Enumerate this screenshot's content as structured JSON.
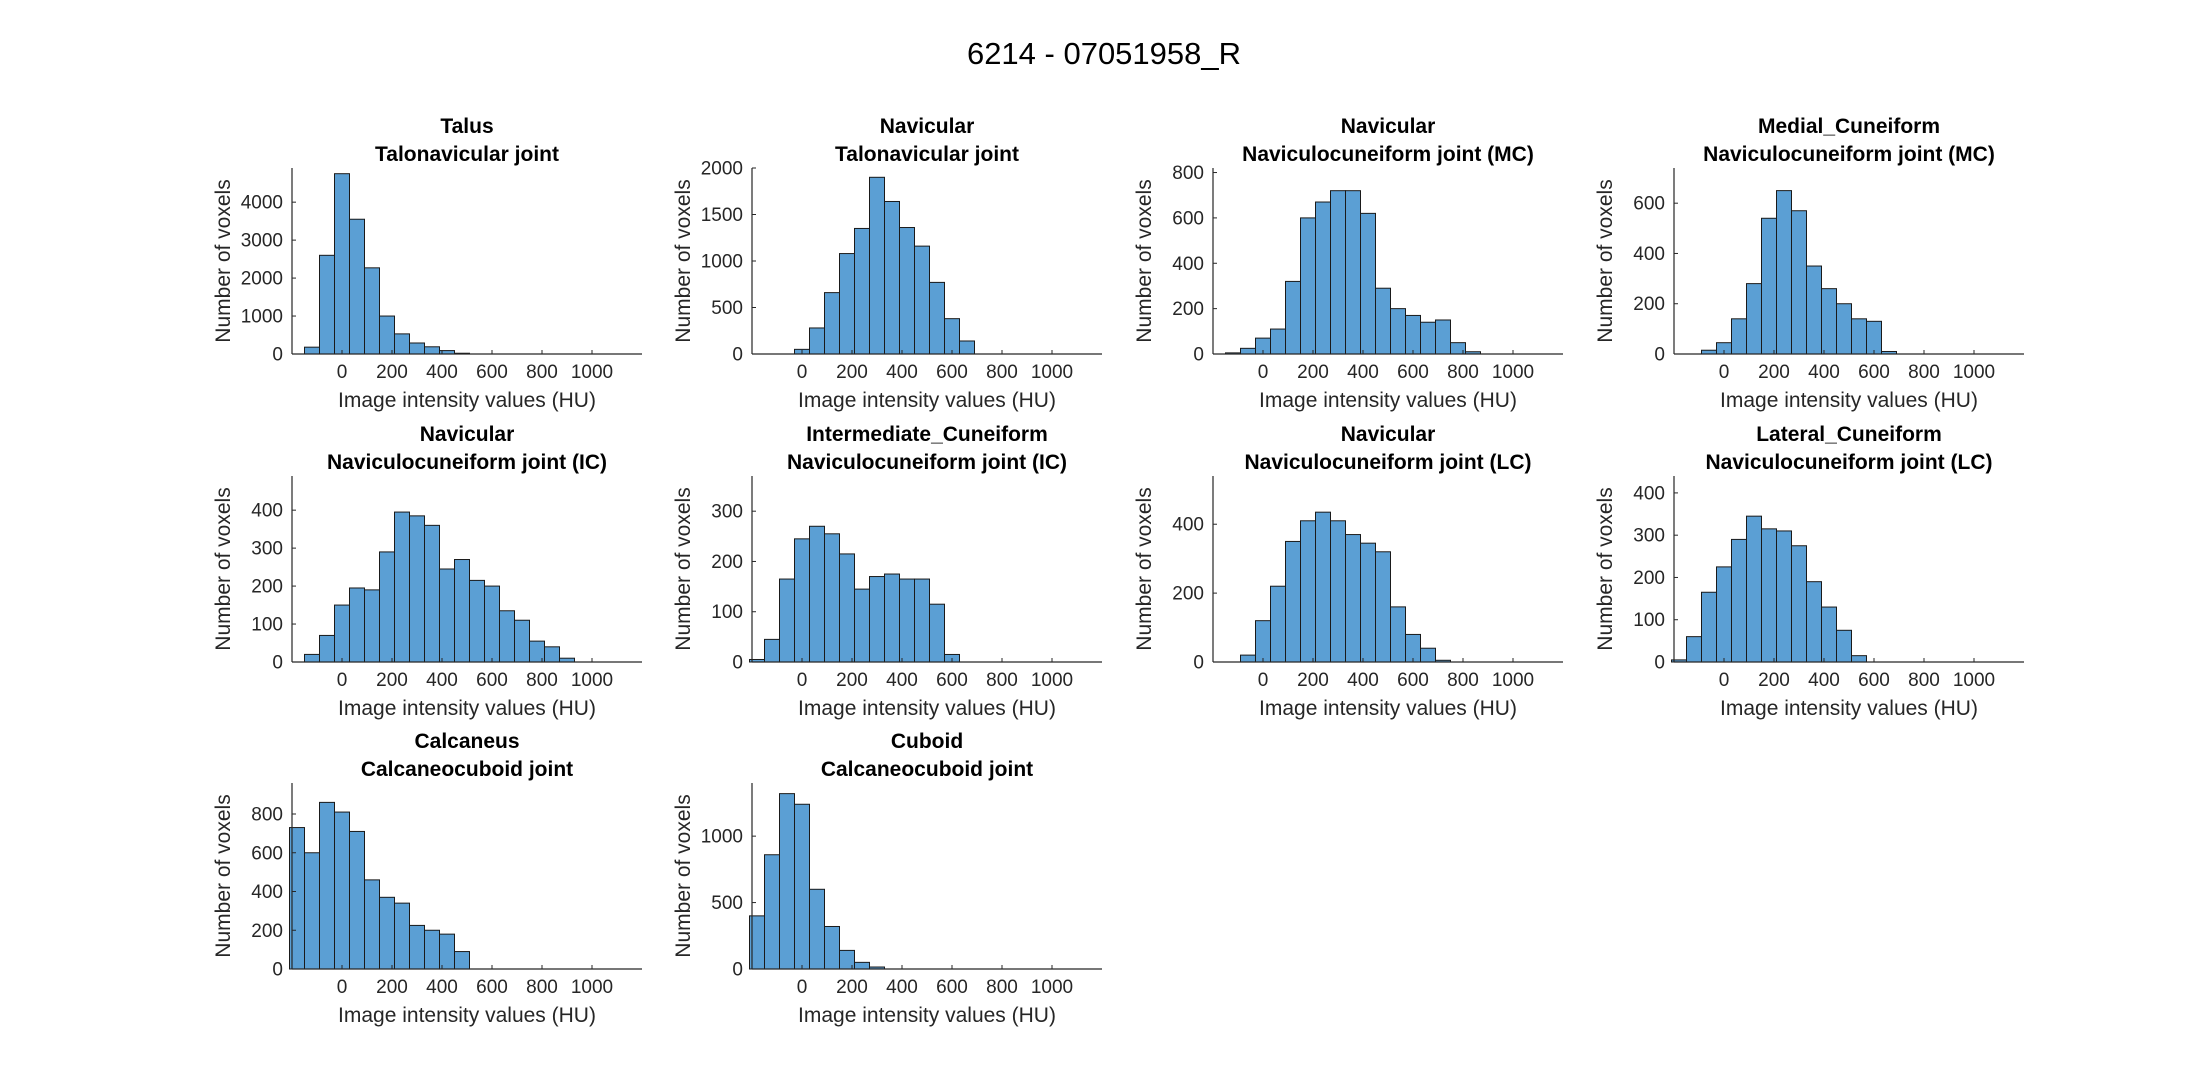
{
  "figure": {
    "suptitle": "6214 - 07051958_R"
  },
  "style": {
    "bar_fill": "#5b9fd4",
    "bar_edge": "#1a1a1a",
    "axis_color": "#262626",
    "text_color": "#000000",
    "background": "#ffffff"
  },
  "chart_data": [
    {
      "type": "bar",
      "kind": "histogram",
      "title": [
        "Talus",
        "Talonavicular joint"
      ],
      "xlabel": "Image intensity values (HU)",
      "ylabel": "Number of voxels",
      "xlim": [
        -200,
        1200
      ],
      "ylim": [
        0,
        4900
      ],
      "xticks": [
        0,
        200,
        400,
        600,
        800,
        1000
      ],
      "yticks": [
        0,
        1000,
        2000,
        3000,
        4000
      ],
      "bin_width": 60,
      "first_bin_start": -150,
      "counts": [
        180,
        2600,
        4750,
        3550,
        2270,
        1000,
        530,
        290,
        190,
        90,
        20
      ]
    },
    {
      "type": "bar",
      "kind": "histogram",
      "title": [
        "Navicular",
        "Talonavicular joint"
      ],
      "xlabel": "Image intensity values (HU)",
      "ylabel": "Number of voxels",
      "xlim": [
        -200,
        1200
      ],
      "ylim": [
        0,
        2000
      ],
      "xticks": [
        0,
        200,
        400,
        600,
        800,
        1000
      ],
      "yticks": [
        0,
        500,
        1000,
        1500,
        2000
      ],
      "bin_width": 60,
      "first_bin_start": -30,
      "counts": [
        50,
        280,
        660,
        1080,
        1350,
        1900,
        1640,
        1360,
        1160,
        770,
        380,
        140
      ]
    },
    {
      "type": "bar",
      "kind": "histogram",
      "title": [
        "Navicular",
        "Naviculocuneiform joint (MC)"
      ],
      "xlabel": "Image intensity values (HU)",
      "ylabel": "Number of voxels",
      "xlim": [
        -200,
        1200
      ],
      "ylim": [
        0,
        820
      ],
      "xticks": [
        0,
        200,
        400,
        600,
        800,
        1000
      ],
      "yticks": [
        0,
        200,
        400,
        600,
        800
      ],
      "bin_width": 60,
      "first_bin_start": -150,
      "counts": [
        5,
        25,
        70,
        110,
        320,
        600,
        670,
        720,
        720,
        620,
        290,
        200,
        170,
        140,
        150,
        50,
        10
      ]
    },
    {
      "type": "bar",
      "kind": "histogram",
      "title": [
        "Medial_Cuneiform",
        "Naviculocuneiform joint (MC)"
      ],
      "xlabel": "Image intensity values (HU)",
      "ylabel": "Number of voxels",
      "xlim": [
        -200,
        1200
      ],
      "ylim": [
        0,
        740
      ],
      "xticks": [
        0,
        200,
        400,
        600,
        800,
        1000
      ],
      "yticks": [
        0,
        200,
        400,
        600
      ],
      "bin_width": 60,
      "first_bin_start": -90,
      "counts": [
        15,
        45,
        140,
        280,
        540,
        650,
        570,
        350,
        260,
        200,
        140,
        130,
        10
      ]
    },
    {
      "type": "bar",
      "kind": "histogram",
      "title": [
        "Navicular",
        "Naviculocuneiform joint (IC)"
      ],
      "xlabel": "Image intensity values (HU)",
      "ylabel": "Number of voxels",
      "xlim": [
        -200,
        1200
      ],
      "ylim": [
        0,
        490
      ],
      "xticks": [
        0,
        200,
        400,
        600,
        800,
        1000
      ],
      "yticks": [
        0,
        100,
        200,
        300,
        400
      ],
      "bin_width": 60,
      "first_bin_start": -150,
      "counts": [
        20,
        70,
        150,
        195,
        190,
        290,
        395,
        385,
        360,
        245,
        270,
        215,
        200,
        135,
        110,
        55,
        40,
        10
      ]
    },
    {
      "type": "bar",
      "kind": "histogram",
      "title": [
        "Intermediate_Cuneiform",
        "Naviculocuneiform joint (IC)"
      ],
      "xlabel": "Image intensity values (HU)",
      "ylabel": "Number of voxels",
      "xlim": [
        -200,
        1200
      ],
      "ylim": [
        0,
        370
      ],
      "xticks": [
        0,
        200,
        400,
        600,
        800,
        1000
      ],
      "yticks": [
        0,
        100,
        200,
        300
      ],
      "bin_width": 60,
      "first_bin_start": -210,
      "counts": [
        5,
        45,
        165,
        245,
        270,
        255,
        215,
        145,
        170,
        175,
        165,
        165,
        115,
        15
      ]
    },
    {
      "type": "bar",
      "kind": "histogram",
      "title": [
        "Navicular",
        "Naviculocuneiform joint (LC)"
      ],
      "xlabel": "Image intensity values (HU)",
      "ylabel": "Number of voxels",
      "xlim": [
        -200,
        1200
      ],
      "ylim": [
        0,
        540
      ],
      "xticks": [
        0,
        200,
        400,
        600,
        800,
        1000
      ],
      "yticks": [
        0,
        200,
        400
      ],
      "bin_width": 60,
      "first_bin_start": -90,
      "counts": [
        20,
        120,
        220,
        350,
        410,
        435,
        410,
        370,
        345,
        320,
        160,
        80,
        40,
        5
      ]
    },
    {
      "type": "bar",
      "kind": "histogram",
      "title": [
        "Lateral_Cuneiform",
        "Naviculocuneiform joint (LC)"
      ],
      "xlabel": "Image intensity values (HU)",
      "ylabel": "Number of voxels",
      "xlim": [
        -200,
        1200
      ],
      "ylim": [
        0,
        440
      ],
      "xticks": [
        0,
        200,
        400,
        600,
        800,
        1000
      ],
      "yticks": [
        0,
        100,
        200,
        300,
        400
      ],
      "bin_width": 60,
      "first_bin_start": -210,
      "counts": [
        5,
        60,
        165,
        225,
        290,
        345,
        315,
        310,
        275,
        190,
        130,
        75,
        15
      ]
    },
    {
      "type": "bar",
      "kind": "histogram",
      "title": [
        "Calcaneus",
        "Calcaneocuboid joint"
      ],
      "xlabel": "Image intensity values (HU)",
      "ylabel": "Number of voxels",
      "xlim": [
        -200,
        1200
      ],
      "ylim": [
        0,
        960
      ],
      "xticks": [
        0,
        200,
        400,
        600,
        800,
        1000
      ],
      "yticks": [
        0,
        200,
        400,
        600,
        800
      ],
      "bin_width": 60,
      "first_bin_start": -210,
      "counts": [
        730,
        600,
        860,
        810,
        710,
        460,
        370,
        340,
        225,
        200,
        180,
        90
      ]
    },
    {
      "type": "bar",
      "kind": "histogram",
      "title": [
        "Cuboid",
        "Calcaneocuboid joint"
      ],
      "xlabel": "Image intensity values (HU)",
      "ylabel": "Number of voxels",
      "xlim": [
        -200,
        1200
      ],
      "ylim": [
        0,
        1400
      ],
      "xticks": [
        0,
        200,
        400,
        600,
        800,
        1000
      ],
      "yticks": [
        0,
        500,
        1000
      ],
      "bin_width": 60,
      "first_bin_start": -210,
      "counts": [
        400,
        860,
        1320,
        1240,
        600,
        320,
        140,
        50,
        15
      ]
    }
  ]
}
